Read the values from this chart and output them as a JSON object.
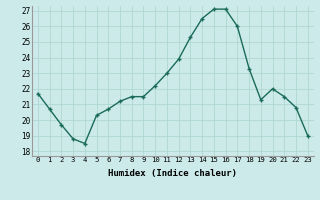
{
  "x": [
    0,
    1,
    2,
    3,
    4,
    5,
    6,
    7,
    8,
    9,
    10,
    11,
    12,
    13,
    14,
    15,
    16,
    17,
    18,
    19,
    20,
    21,
    22,
    23
  ],
  "y": [
    21.7,
    20.7,
    19.7,
    18.8,
    18.5,
    20.3,
    20.7,
    21.2,
    21.5,
    21.5,
    22.2,
    23.0,
    23.9,
    25.3,
    26.5,
    27.1,
    27.1,
    26.0,
    23.3,
    21.3,
    22.0,
    21.5,
    20.8,
    19.0
  ],
  "xlabel": "Humidex (Indice chaleur)",
  "ylim_min": 18,
  "ylim_max": 27,
  "yticks": [
    18,
    19,
    20,
    21,
    22,
    23,
    24,
    25,
    26,
    27
  ],
  "line_color": "#1a6b5a",
  "marker": "+",
  "bg_color": "#cceaea",
  "grid_color": "#b0d8d0"
}
